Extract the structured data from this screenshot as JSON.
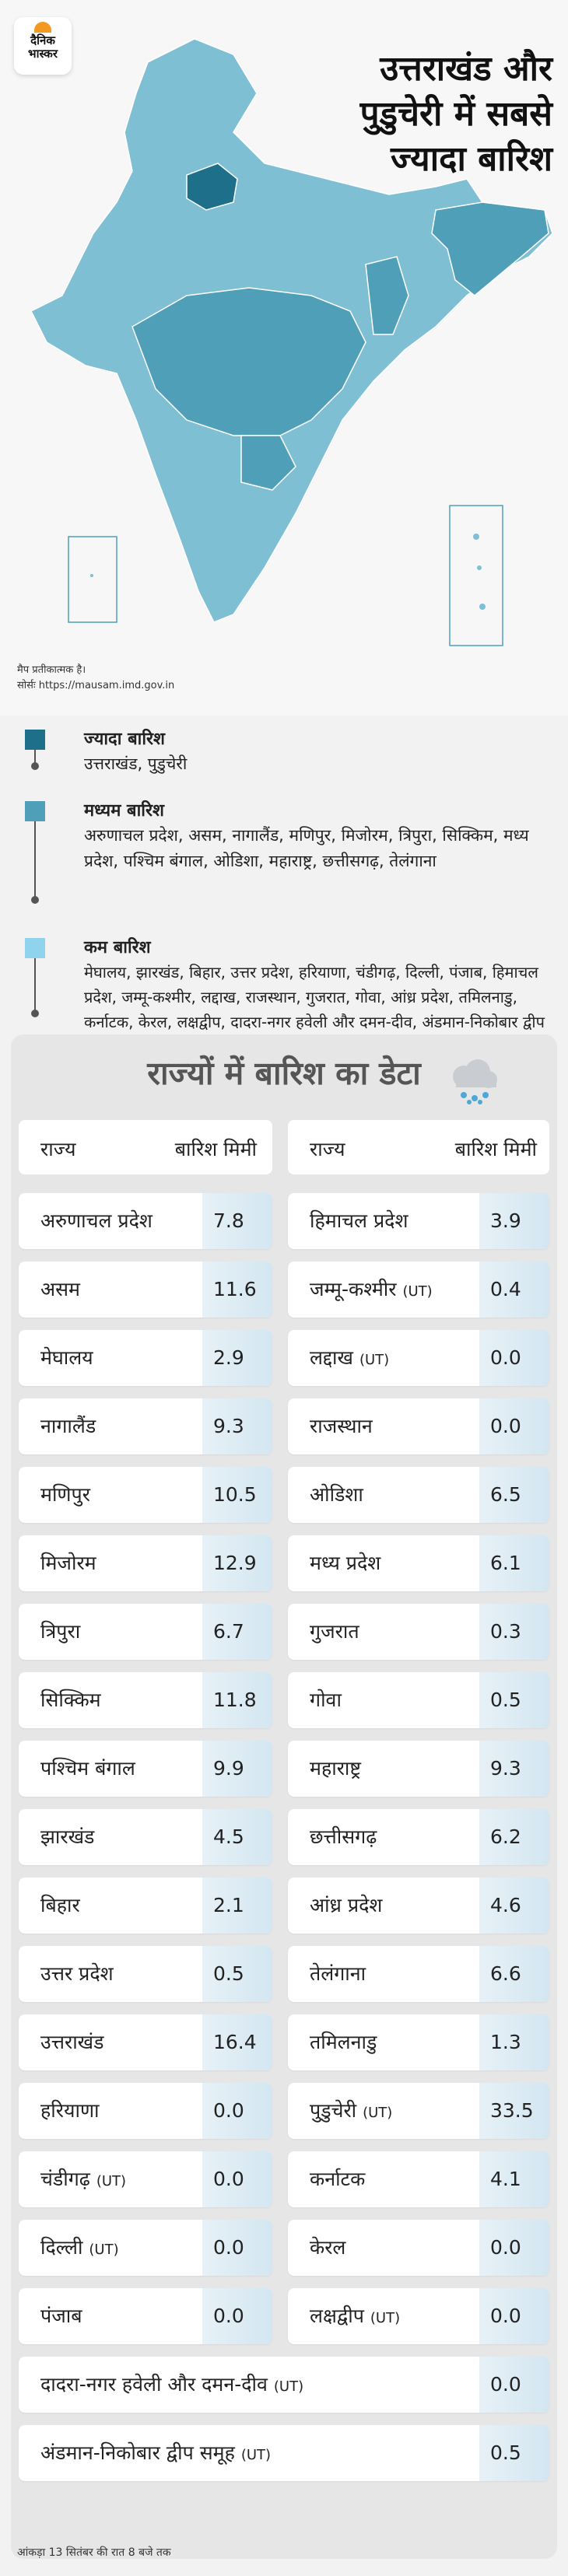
{
  "brand": {
    "name_line1": "दैनिक",
    "name_line2": "भास्कर"
  },
  "headline": {
    "line1": "उत्तराखंड और",
    "line2": "पुडुचेरी में सबसे",
    "line3": "ज्यादा बारिश"
  },
  "map_note": {
    "line1": "मैप प्रतीकात्मक है।",
    "line2": "सोर्सः https://mausam.imd.gov.in"
  },
  "colors": {
    "high": "#1d6f8a",
    "medium": "#4f9fb8",
    "low": "#8fd3ec",
    "land": "#7fbfd4"
  },
  "legend": [
    {
      "title": "ज्यादा बारिश",
      "text": "उत्तराखंड, पुडुचेरी"
    },
    {
      "title": "मध्यम बारिश",
      "text": "अरुणाचल प्रदेश, असम, नागालैंड, मणिपुर, मिजोरम, त्रिपुरा, सिक्किम, मध्य प्रदेश, पश्चिम बंगाल, ओडिशा, महाराष्ट्र, छत्तीसगढ़, तेलंगाना"
    },
    {
      "title": "कम बारिश",
      "text": "मेघालय, झारखंड, बिहार, उत्तर प्रदेश, हरियाणा, चंडीगढ़, दिल्ली, पंजाब, हिमाचल प्रदेश, जम्मू-कश्मीर, लद्दाख, राजस्थान, गुजरात, गोवा, आंध्र प्रदेश, तमिलनाडु, कर्नाटक, केरल, लक्षद्वीप, दादरा-नगर हवेली और दमन-दीव, अंडमान-निकोबार द्वीप समूह"
    }
  ],
  "table": {
    "title": "राज्यों में बारिश का डेटा",
    "col_state": "राज्य",
    "col_rain": "बारिश मिमी",
    "left": [
      {
        "name": "अरुणाचल प्रदेश",
        "ut": "",
        "value": "7.8"
      },
      {
        "name": "असम",
        "ut": "",
        "value": "11.6"
      },
      {
        "name": "मेघालय",
        "ut": "",
        "value": "2.9"
      },
      {
        "name": "नागालैंड",
        "ut": "",
        "value": "9.3"
      },
      {
        "name": "मणिपुर",
        "ut": "",
        "value": "10.5"
      },
      {
        "name": "मिजोरम",
        "ut": "",
        "value": "12.9"
      },
      {
        "name": "त्रिपुरा",
        "ut": "",
        "value": "6.7"
      },
      {
        "name": "सिक्किम",
        "ut": "",
        "value": "11.8"
      },
      {
        "name": "पश्चिम बंगाल",
        "ut": "",
        "value": "9.9"
      },
      {
        "name": "झारखंड",
        "ut": "",
        "value": "4.5"
      },
      {
        "name": "बिहार",
        "ut": "",
        "value": "2.1"
      },
      {
        "name": "उत्तर प्रदेश",
        "ut": "",
        "value": "0.5"
      },
      {
        "name": "उत्तराखंड",
        "ut": "",
        "value": "16.4"
      },
      {
        "name": "हरियाणा",
        "ut": "",
        "value": "0.0"
      },
      {
        "name": "चंडीगढ़",
        "ut": "(UT)",
        "value": "0.0"
      },
      {
        "name": "दिल्ली",
        "ut": "(UT)",
        "value": "0.0"
      },
      {
        "name": "पंजाब",
        "ut": "",
        "value": "0.0"
      }
    ],
    "right": [
      {
        "name": "हिमाचल प्रदेश",
        "ut": "",
        "value": "3.9"
      },
      {
        "name": "जम्मू-कश्मीर",
        "ut": "(UT)",
        "value": "0.4"
      },
      {
        "name": "लद्दाख",
        "ut": "(UT)",
        "value": "0.0"
      },
      {
        "name": "राजस्थान",
        "ut": "",
        "value": "0.0"
      },
      {
        "name": "ओडिशा",
        "ut": "",
        "value": "6.5"
      },
      {
        "name": "मध्य प्रदेश",
        "ut": "",
        "value": "6.1"
      },
      {
        "name": "गुजरात",
        "ut": "",
        "value": "0.3"
      },
      {
        "name": "गोवा",
        "ut": "",
        "value": "0.5"
      },
      {
        "name": "महाराष्ट्र",
        "ut": "",
        "value": "9.3"
      },
      {
        "name": "छत्तीसगढ़",
        "ut": "",
        "value": "6.2"
      },
      {
        "name": "आंध्र प्रदेश",
        "ut": "",
        "value": "4.6"
      },
      {
        "name": "तेलंगाना",
        "ut": "",
        "value": "6.6"
      },
      {
        "name": "तमिलनाडु",
        "ut": "",
        "value": "1.3"
      },
      {
        "name": "पुडुचेरी",
        "ut": "(UT)",
        "value": "33.5"
      },
      {
        "name": "कर्नाटक",
        "ut": "",
        "value": "4.1"
      },
      {
        "name": "केरल",
        "ut": "",
        "value": "0.0"
      },
      {
        "name": "लक्षद्वीप",
        "ut": "(UT)",
        "value": "0.0"
      }
    ],
    "full": [
      {
        "name": "दादरा-नगर हवेली और दमन-दीव",
        "ut": "(UT)",
        "value": "0.0"
      },
      {
        "name": "अंडमान-निकोबार द्वीप समूह",
        "ut": "(UT)",
        "value": "0.5"
      }
    ]
  },
  "footer": "आंकड़ा 13 सितंबर की रात 8 बजे तक"
}
